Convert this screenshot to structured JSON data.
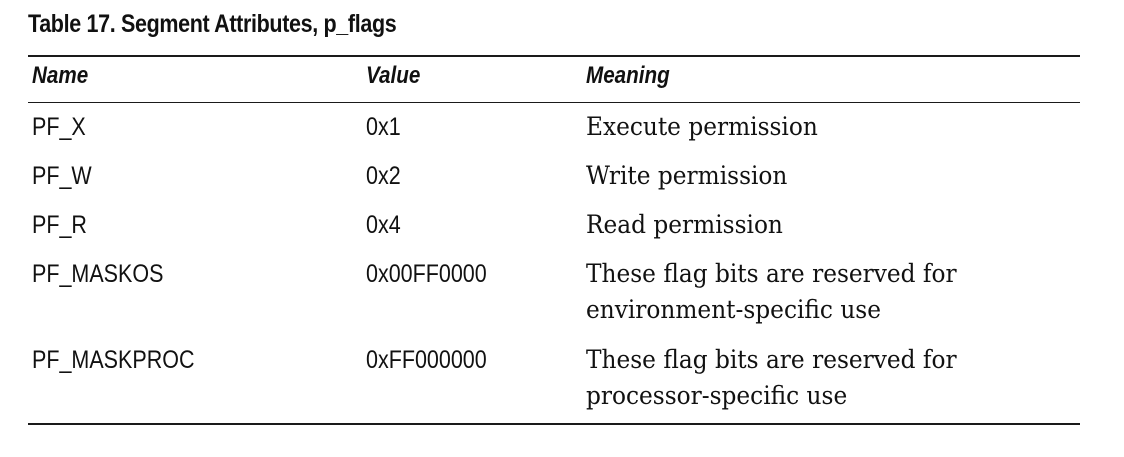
{
  "table": {
    "caption": "Table 17.  Segment Attributes, p_flags",
    "headers": {
      "name": "Name",
      "value": "Value",
      "meaning": "Meaning"
    },
    "rows": [
      {
        "name": "PF_X",
        "value": "0x1",
        "meaning": "Execute permission"
      },
      {
        "name": "PF_W",
        "value": "0x2",
        "meaning": "Write permission"
      },
      {
        "name": "PF_R",
        "value": "0x4",
        "meaning": "Read permission"
      },
      {
        "name": "PF_MASKOS",
        "value": "0x00FF0000",
        "meaning": "These flag bits are reserved for environment-specific use"
      },
      {
        "name": "PF_MASKPROC",
        "value": "0xFF000000",
        "meaning": "These flag bits are reserved for processor-specific use"
      }
    ]
  }
}
